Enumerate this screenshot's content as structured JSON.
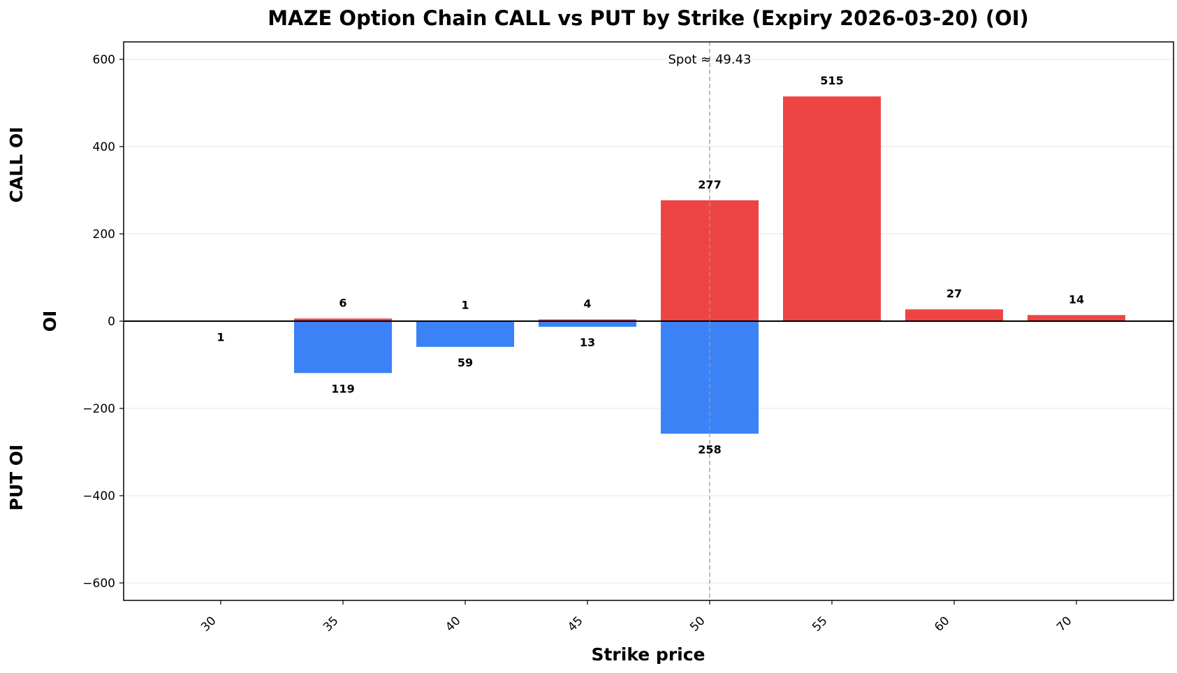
{
  "chart_data": {
    "type": "bar",
    "title": "MAZE Option Chain CALL vs PUT by Strike (Expiry 2026-03-20) (OI)",
    "xlabel": "Strike price",
    "ylabel": "OI",
    "side_labels": {
      "upper": "CALL OI",
      "lower": "PUT OI"
    },
    "categories": [
      "30",
      "35",
      "40",
      "45",
      "50",
      "55",
      "60",
      "70"
    ],
    "series": [
      {
        "name": "CALL OI",
        "values": [
          0,
          6,
          1,
          4,
          277,
          515,
          27,
          14
        ],
        "color": "#ef4444",
        "labels": [
          "",
          "6",
          "1",
          "4",
          "277",
          "515",
          "27",
          "14"
        ]
      },
      {
        "name": "PUT OI",
        "values": [
          1,
          119,
          59,
          13,
          258,
          0,
          0,
          0
        ],
        "color": "#3b82f6",
        "labels": [
          "1",
          "119",
          "59",
          "13",
          "258",
          "",
          "",
          ""
        ]
      }
    ],
    "ylim": [
      -640,
      640
    ],
    "yticks": [
      600,
      400,
      200,
      0,
      -200,
      -400,
      -600
    ],
    "ytick_labels": [
      "600",
      "400",
      "200",
      "0",
      "−200",
      "−400",
      "−600"
    ],
    "spot": {
      "value": 49.43,
      "label": "Spot ≈ 49.43"
    },
    "grid": true,
    "legend": "none"
  }
}
